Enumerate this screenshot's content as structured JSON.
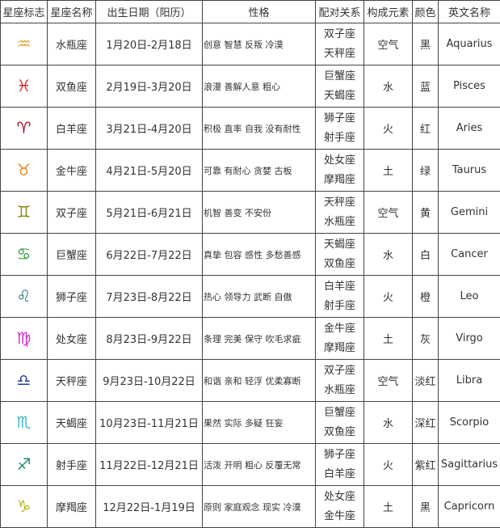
{
  "headers": [
    "星座标志",
    "星座名称",
    "出生日期（阳历）",
    "性格",
    "配对关系",
    "构成元素",
    "颜色",
    "英文名称"
  ],
  "rows": [
    {
      "icon": "aquarius-icon",
      "icon_color": "#e8a23a",
      "name": "水瓶座",
      "dates": "1月20日-2月18日",
      "traits": "创意 智慧 反叛 冷漠",
      "match": [
        "双子座",
        "天秤座"
      ],
      "element": "空气",
      "color": "黑",
      "english": "Aquarius"
    },
    {
      "icon": "pisces-icon",
      "icon_color": "#e0262a",
      "name": "双鱼座",
      "dates": "2月19日-3月20日",
      "traits": "浪漫 善解人意 粗心",
      "match": [
        "巨蟹座",
        "天蝎座"
      ],
      "element": "水",
      "color": "蓝",
      "english": "Pisces"
    },
    {
      "icon": "aries-icon",
      "icon_color": "#a8102a",
      "name": "白羊座",
      "dates": "3月21日-4月20日",
      "traits": "积极 直率 自我 没有耐性",
      "match": [
        "狮子座",
        "射手座"
      ],
      "element": "火",
      "color": "红",
      "english": "Aries"
    },
    {
      "icon": "taurus-icon",
      "icon_color": "#e88a1a",
      "name": "金牛座",
      "dates": "4月21日-5月20日",
      "traits": "可靠 有耐心 贪婪 古板",
      "match": [
        "处女座",
        "摩羯座"
      ],
      "element": "土",
      "color": "绿",
      "english": "Taurus"
    },
    {
      "icon": "gemini-icon",
      "icon_color": "#8a8a1a",
      "name": "双子座",
      "dates": "5月21日-6月21日",
      "traits": "机智  善变 不安份",
      "match": [
        "天秤座",
        "水瓶座"
      ],
      "element": "空气",
      "color": "黄",
      "english": "Gemini"
    },
    {
      "icon": "cancer-icon",
      "icon_color": "#2a9a3a",
      "name": "巨蟹座",
      "dates": "6月22日-7月22日",
      "traits": "真挚 包容 感性 多愁善感",
      "match": [
        "天蝎座",
        "双鱼座"
      ],
      "element": "水",
      "color": "白",
      "english": "Cancer"
    },
    {
      "icon": "leo-icon",
      "icon_color": "#2a7a7a",
      "name": "狮子座",
      "dates": "7月23日-8月22日",
      "traits": "热心 领导力 武断 自傲",
      "match": [
        "白羊座",
        "射手座"
      ],
      "element": "火",
      "color": "橙",
      "english": "Leo"
    },
    {
      "icon": "virgo-icon",
      "icon_color": "#d62ad6",
      "name": "处女座",
      "dates": "8月23日-9月22日",
      "traits": "条理 完美 保守 吹毛求疵",
      "match": [
        "金牛座",
        "摩羯座"
      ],
      "element": "土",
      "color": "灰",
      "english": "Virgo"
    },
    {
      "icon": "libra-icon",
      "icon_color": "#2a3a9a",
      "name": "天秤座",
      "dates": "9月23日-10月22日",
      "traits": "和谐 亲和 轻浮 优柔寡断",
      "match": [
        "双子座",
        "水瓶座"
      ],
      "element": "空气",
      "color": "淡红",
      "english": "Libra"
    },
    {
      "icon": "scorpio-icon",
      "icon_color": "#3ab8c8",
      "name": "天蝎座",
      "dates": "10月23日-11月21日",
      "traits": "果然 实际 多疑 狂妄",
      "match": [
        "巨蟹座",
        "双鱼座"
      ],
      "element": "水",
      "color": "深红",
      "english": "Scorpio"
    },
    {
      "icon": "sagittarius-icon",
      "icon_color": "#2a8a6a",
      "name": "射手座",
      "dates": "11月22日-12月21日",
      "traits": "活泼 开明 粗心 反覆无常",
      "match": [
        "狮子座",
        "白羊座"
      ],
      "element": "火",
      "color": "紫红",
      "english": "Sagittarius"
    },
    {
      "icon": "capricorn-icon",
      "icon_color": "#b8b81a",
      "name": "摩羯座",
      "dates": "12月22日-1月19日",
      "traits": "原则 家庭观念 现实 冷漠",
      "match": [
        "处女座",
        "金牛座"
      ],
      "element": "土",
      "color": "黑",
      "english": "Capricorn"
    }
  ]
}
